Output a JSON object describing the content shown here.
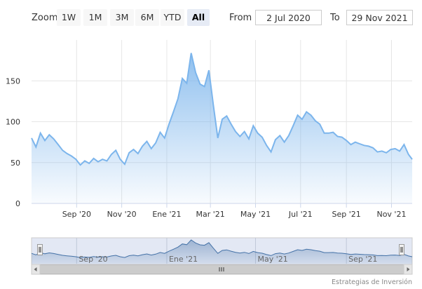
{
  "rangeSelector": {
    "zoom_label": "Zoom",
    "buttons": [
      "1W",
      "1M",
      "3M",
      "6M",
      "YTD",
      "All"
    ],
    "active": "All",
    "from_label": "From",
    "from_value": "2 Jul 2020",
    "to_label": "To",
    "to_value": "29 Nov 2021"
  },
  "credit": "Estrategias de Inversión",
  "colors": {
    "line": "#7cb5ec",
    "grid": "#e6e6e6",
    "navigator_mask": "#ccd6eb"
  },
  "chart_data": {
    "type": "area",
    "title": "",
    "xlabel": "",
    "ylabel": "",
    "ylim": [
      0,
      200
    ],
    "yticks": [
      "0",
      "50",
      "100",
      "150"
    ],
    "xticks": [
      "Sep '20",
      "Nov '20",
      "Ene '21",
      "Mar '21",
      "May '21",
      "Jul '21",
      "Sep '21",
      "Nov '21"
    ],
    "navigator_ticks": [
      "Sep '20",
      "Ene '21",
      "May '21",
      "Sep '21"
    ],
    "grid": true,
    "legend": "none",
    "series": [
      {
        "x": [
          "2020-07-02",
          "2020-07-08",
          "2020-07-14",
          "2020-07-20",
          "2020-07-26",
          "2020-08-01",
          "2020-08-07",
          "2020-08-13",
          "2020-08-19",
          "2020-08-25",
          "2020-08-31",
          "2020-09-06",
          "2020-09-12",
          "2020-09-18",
          "2020-09-24",
          "2020-09-30",
          "2020-10-06",
          "2020-10-12",
          "2020-10-18",
          "2020-10-24",
          "2020-10-30",
          "2020-11-05",
          "2020-11-11",
          "2020-11-17",
          "2020-11-23",
          "2020-11-29",
          "2020-12-05",
          "2020-12-11",
          "2020-12-17",
          "2020-12-23",
          "2020-12-29",
          "2021-01-04",
          "2021-01-10",
          "2021-01-16",
          "2021-01-22",
          "2021-01-28",
          "2021-02-03",
          "2021-02-09",
          "2021-02-15",
          "2021-02-21",
          "2021-02-27",
          "2021-03-05",
          "2021-03-11",
          "2021-03-17",
          "2021-03-23",
          "2021-03-29",
          "2021-04-04",
          "2021-04-10",
          "2021-04-16",
          "2021-04-22",
          "2021-04-28",
          "2021-05-04",
          "2021-05-10",
          "2021-05-16",
          "2021-05-22",
          "2021-05-28",
          "2021-06-03",
          "2021-06-09",
          "2021-06-15",
          "2021-06-21",
          "2021-06-27",
          "2021-07-03",
          "2021-07-09",
          "2021-07-15",
          "2021-07-21",
          "2021-07-27",
          "2021-08-02",
          "2021-08-08",
          "2021-08-14",
          "2021-08-20",
          "2021-08-26",
          "2021-09-01",
          "2021-09-07",
          "2021-09-13",
          "2021-09-19",
          "2021-09-25",
          "2021-10-01",
          "2021-10-07",
          "2021-10-13",
          "2021-10-19",
          "2021-10-25",
          "2021-10-31",
          "2021-11-06",
          "2021-11-12",
          "2021-11-18",
          "2021-11-24",
          "2021-11-29"
        ],
        "values": [
          80,
          69,
          86,
          77,
          84,
          79,
          72,
          65,
          61,
          58,
          54,
          47,
          52,
          49,
          55,
          51,
          54,
          52,
          60,
          65,
          54,
          48,
          62,
          66,
          61,
          70,
          76,
          67,
          74,
          87,
          80,
          97,
          112,
          128,
          153,
          147,
          184,
          160,
          146,
          143,
          163,
          120,
          80,
          103,
          107,
          97,
          88,
          82,
          88,
          79,
          95,
          86,
          81,
          71,
          63,
          78,
          83,
          75,
          83,
          95,
          108,
          103,
          112,
          108,
          101,
          97,
          86,
          86,
          87,
          82,
          81,
          77,
          72,
          75,
          73,
          71,
          70,
          68,
          63,
          64,
          62,
          66,
          67,
          64,
          72,
          60,
          54
        ]
      }
    ]
  }
}
